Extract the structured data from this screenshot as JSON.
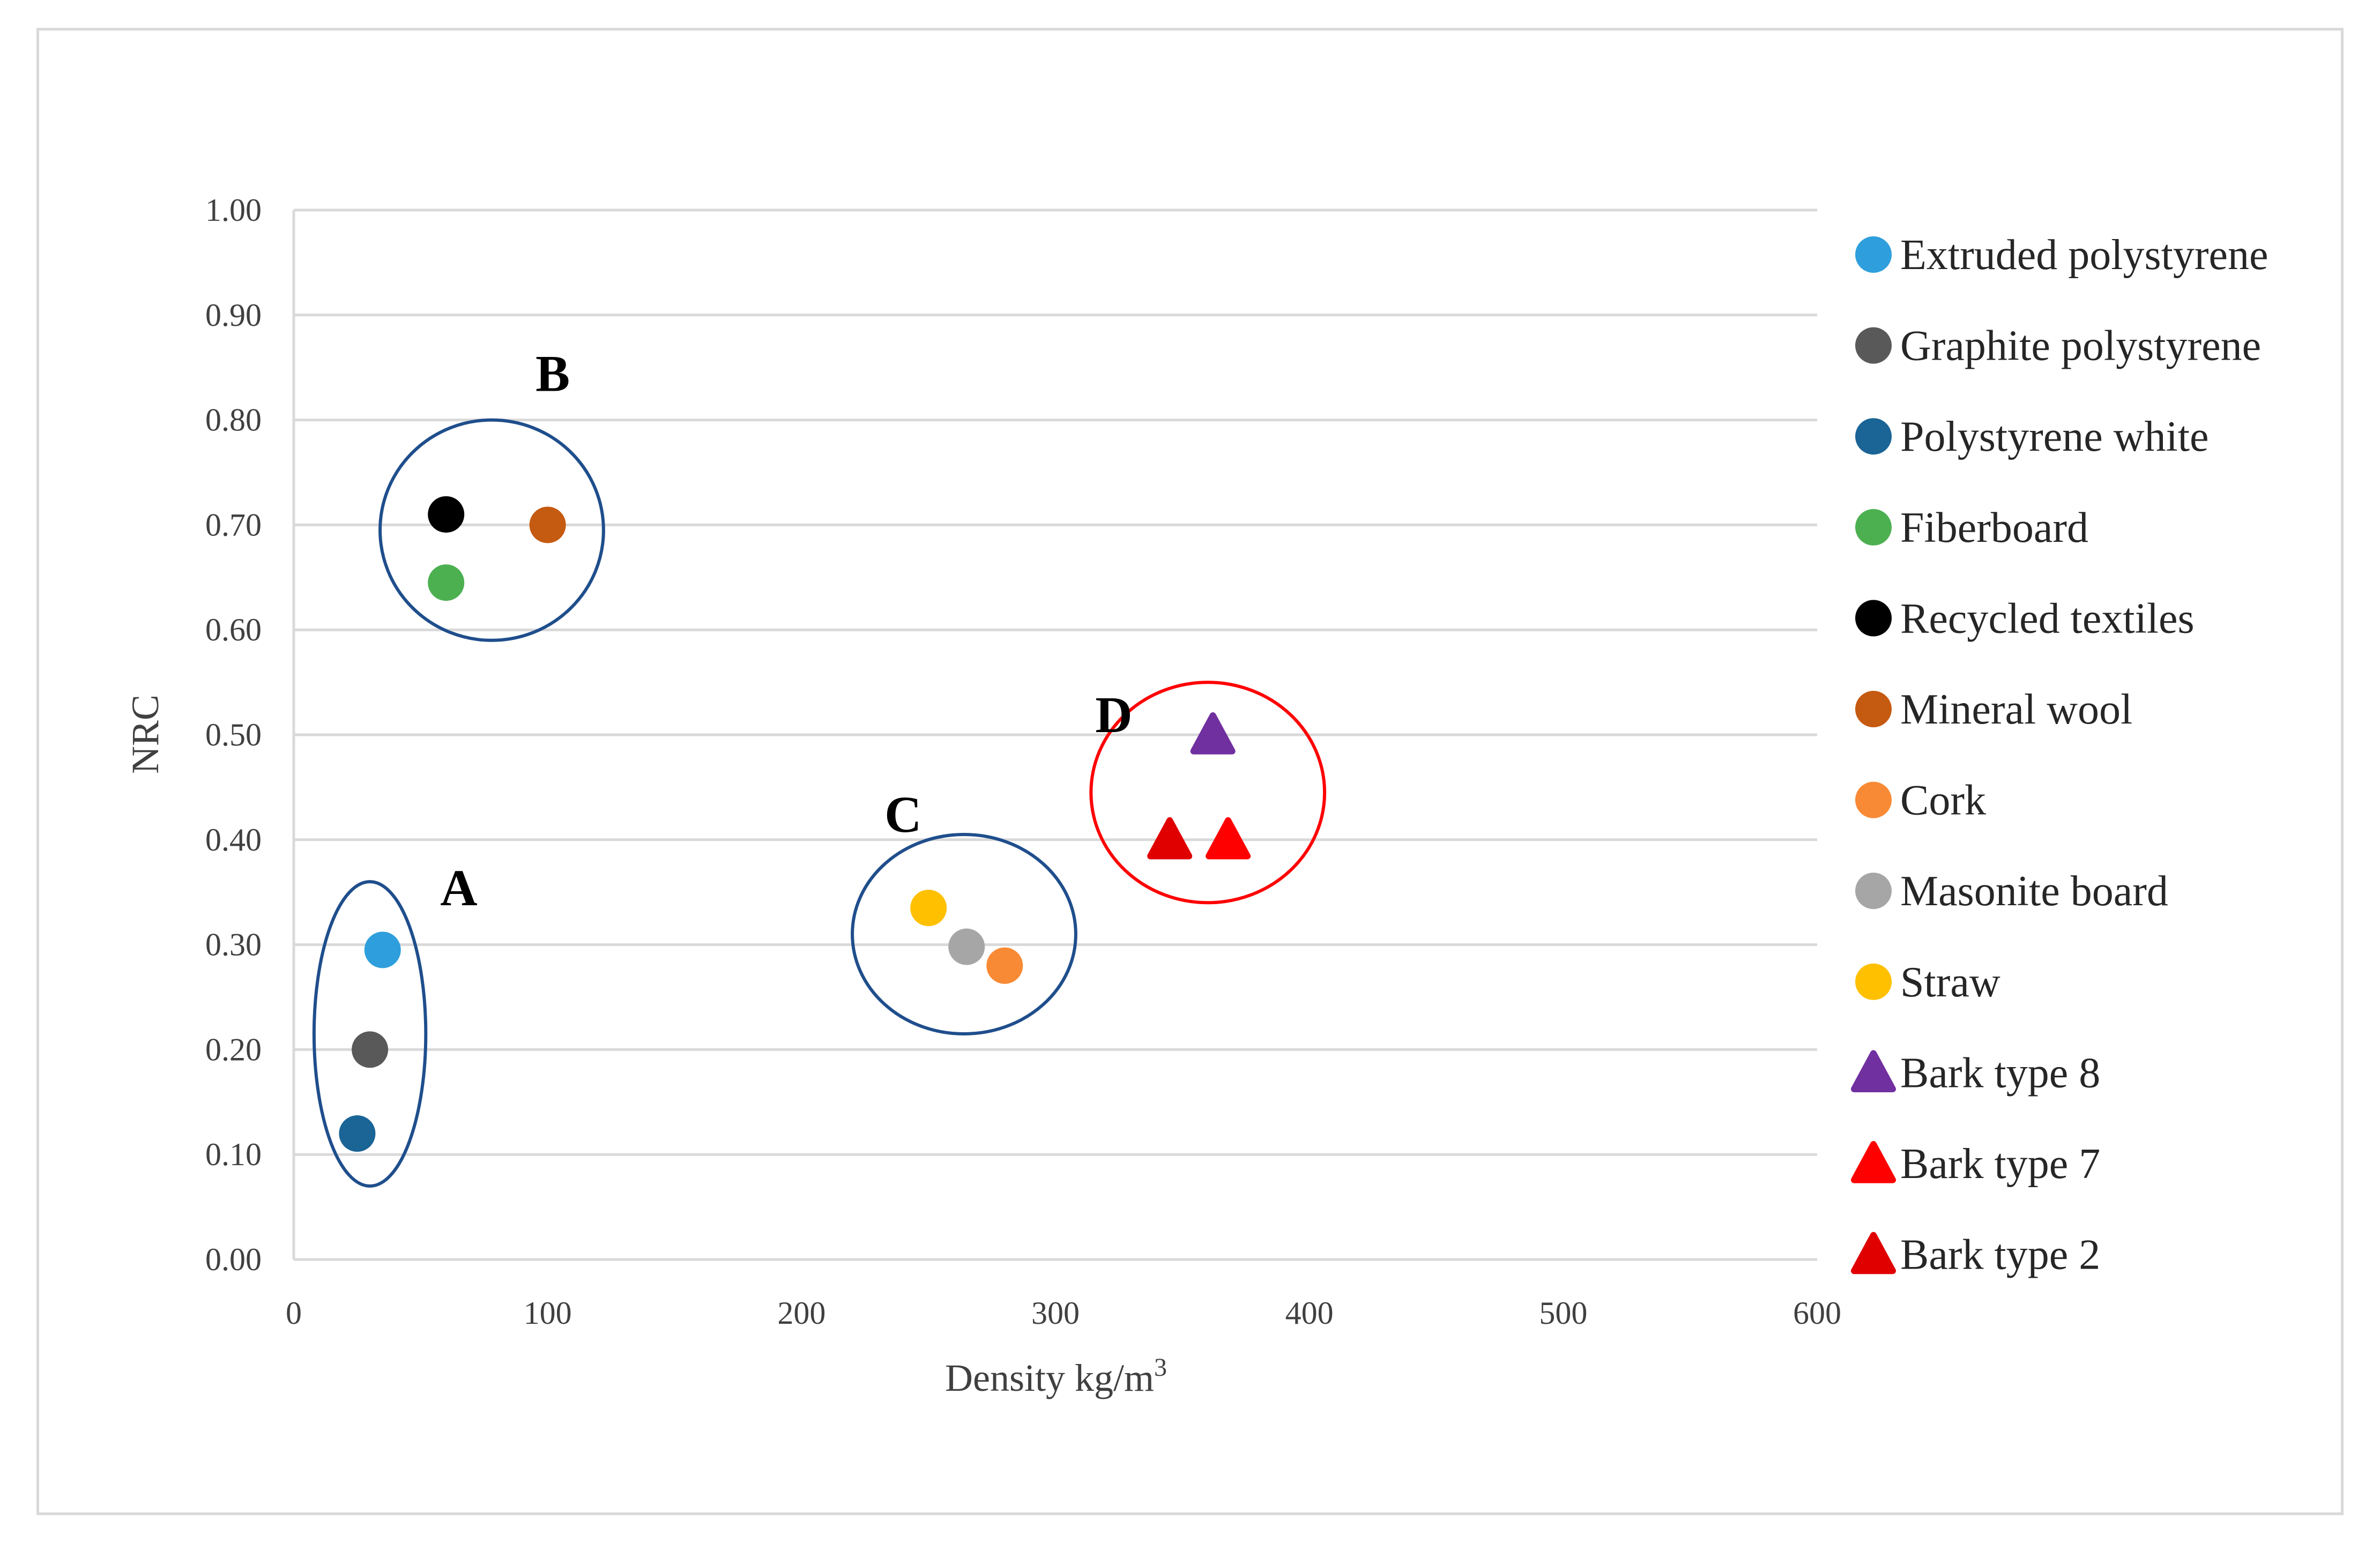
{
  "chart_data": {
    "type": "scatter",
    "xlabel": "Density kg/m",
    "xlabel_superscript": "3",
    "ylabel": "NRC",
    "xlim": [
      0,
      600
    ],
    "ylim": [
      0,
      1.0
    ],
    "x_ticks": [
      "0",
      "100",
      "200",
      "300",
      "400",
      "500",
      "600"
    ],
    "y_ticks": [
      "0.00",
      "0.10",
      "0.20",
      "0.30",
      "0.40",
      "0.50",
      "0.60",
      "0.70",
      "0.80",
      "0.90",
      "1.00"
    ],
    "grid": "horizontal",
    "legend_position": "right",
    "series": [
      {
        "name": "Extruded polystyrene",
        "marker": "circle",
        "color": "#2e9fdc",
        "x": 35,
        "y": 0.295
      },
      {
        "name": "Graphite polystyrene",
        "marker": "circle",
        "color": "#595959",
        "x": 30,
        "y": 0.2
      },
      {
        "name": "Polystyrene white",
        "marker": "circle",
        "color": "#1a6496",
        "x": 25,
        "y": 0.12
      },
      {
        "name": "Fiberboard",
        "marker": "circle",
        "color": "#4cb050",
        "x": 60,
        "y": 0.645
      },
      {
        "name": "Recycled textiles",
        "marker": "circle",
        "color": "#000000",
        "x": 60,
        "y": 0.71
      },
      {
        "name": "Mineral wool",
        "marker": "circle",
        "color": "#c55a11",
        "x": 100,
        "y": 0.7
      },
      {
        "name": "Cork",
        "marker": "circle",
        "color": "#f98a35",
        "x": 280,
        "y": 0.28
      },
      {
        "name": "Masonite board",
        "marker": "circle",
        "color": "#a6a6a6",
        "x": 265,
        "y": 0.298
      },
      {
        "name": "Straw",
        "marker": "circle",
        "color": "#ffc000",
        "x": 250,
        "y": 0.335
      },
      {
        "name": "Bark type 8",
        "marker": "triangle",
        "color": "#7030a0",
        "x": 362,
        "y": 0.5
      },
      {
        "name": "Bark type 7",
        "marker": "triangle",
        "color": "#ff0000",
        "x": 368,
        "y": 0.4
      },
      {
        "name": "Bark type 2",
        "marker": "triangle",
        "color": "#e00000",
        "x": 345,
        "y": 0.4
      }
    ],
    "annotations": [
      {
        "label": "A",
        "color": "#1f4e8c",
        "cx": 30,
        "cy": 0.215,
        "rx": 22,
        "ry": 0.145,
        "label_x": 65,
        "label_y": 0.355
      },
      {
        "label": "B",
        "color": "#1f4e8c",
        "cx": 78,
        "cy": 0.695,
        "rx": 44,
        "ry": 0.105,
        "label_x": 102,
        "label_y": 0.845
      },
      {
        "label": "C",
        "color": "#1f4e8c",
        "cx": 264,
        "cy": 0.31,
        "rx": 44,
        "ry": 0.095,
        "label_x": 240,
        "label_y": 0.425
      },
      {
        "label": "D",
        "color": "#ff0000",
        "cx": 360,
        "cy": 0.445,
        "rx": 46,
        "ry": 0.105,
        "label_x": 323,
        "label_y": 0.52
      }
    ]
  }
}
